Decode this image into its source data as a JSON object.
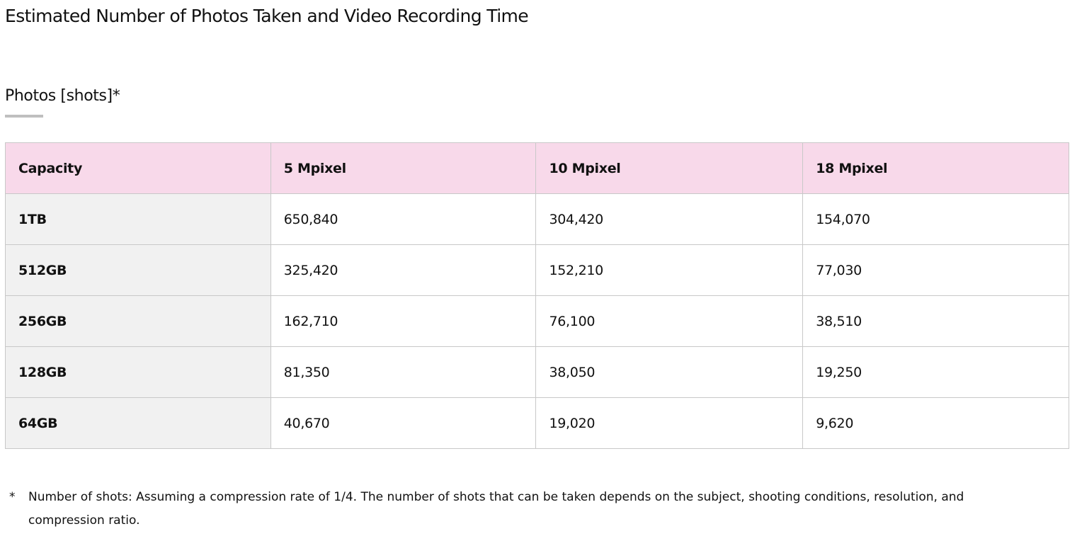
{
  "title": "Estimated Number of Photos Taken and Video Recording Time",
  "section": {
    "heading": "Photos [shots]*"
  },
  "table": {
    "headers": [
      "Capacity",
      "5 Mpixel",
      "10 Mpixel",
      "18 Mpixel"
    ],
    "rows": [
      [
        "1TB",
        "650,840",
        "304,420",
        "154,070"
      ],
      [
        "512GB",
        "325,420",
        "152,210",
        "77,030"
      ],
      [
        "256GB",
        "162,710",
        "76,100",
        "38,510"
      ],
      [
        "128GB",
        "81,350",
        "38,050",
        "19,250"
      ],
      [
        "64GB",
        "40,670",
        "19,020",
        "9,620"
      ]
    ]
  },
  "footnote": {
    "marker": "*",
    "text": "Number of shots: Assuming a compression rate of 1/4. The number of shots that can be taken depends on the subject, shooting conditions, resolution, and compression ratio."
  },
  "colors": {
    "header_bg": "#f8d9ea",
    "capacity_bg": "#f1f1f1",
    "border": "#c8c8c8"
  }
}
